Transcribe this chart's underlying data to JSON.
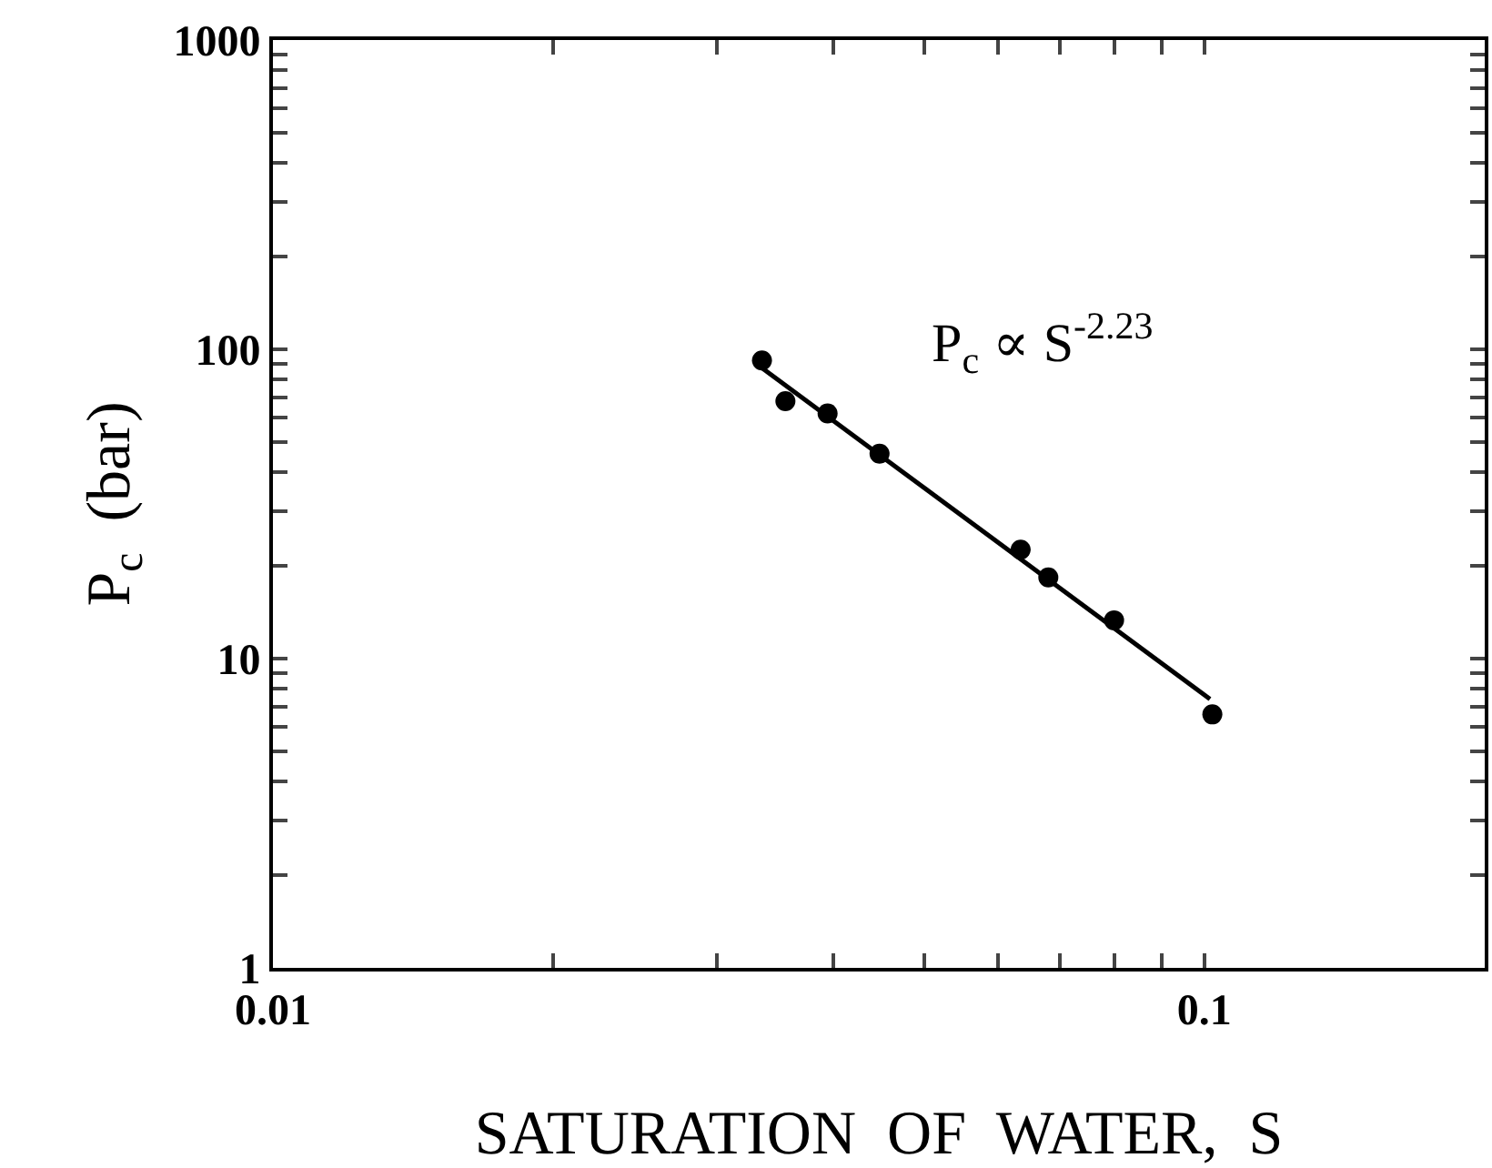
{
  "chart_data": {
    "type": "scatter",
    "xlabel": "SATURATION  OF  WATER,  S",
    "ylabel": "P$_{c}$  (bar)",
    "log": "xy",
    "grid": false,
    "legend": false,
    "marker": "circle",
    "xlim": [
      0.01,
      0.2
    ],
    "ylim": [
      1,
      1000
    ],
    "xticks": [
      {
        "value": 0.01,
        "label": "0.01"
      },
      {
        "value": 0.02,
        "label": null
      },
      {
        "value": 0.03,
        "label": null
      },
      {
        "value": 0.04,
        "label": null
      },
      {
        "value": 0.05,
        "label": null
      },
      {
        "value": 0.06,
        "label": null
      },
      {
        "value": 0.07,
        "label": null
      },
      {
        "value": 0.08,
        "label": null
      },
      {
        "value": 0.09,
        "label": null
      },
      {
        "value": 0.1,
        "label": "0.1"
      }
    ],
    "yticks": [
      1,
      {
        "value": 2,
        "label": null
      },
      {
        "value": 3,
        "label": null
      },
      {
        "value": 4,
        "label": null
      },
      {
        "value": 5,
        "label": null
      },
      {
        "value": 6,
        "label": null
      },
      {
        "value": 7,
        "label": null
      },
      {
        "value": 8,
        "label": null
      },
      {
        "value": 9,
        "label": null
      },
      10,
      {
        "value": 20,
        "label": null
      },
      {
        "value": 30,
        "label": null
      },
      {
        "value": 40,
        "label": null
      },
      {
        "value": 50,
        "label": null
      },
      {
        "value": 60,
        "label": null
      },
      {
        "value": 70,
        "label": null
      },
      {
        "value": 80,
        "label": null
      },
      {
        "value": 90,
        "label": null
      },
      100,
      {
        "value": 200,
        "label": null
      },
      {
        "value": 300,
        "label": null
      },
      {
        "value": 400,
        "label": null
      },
      {
        "value": 500,
        "label": null
      },
      {
        "value": 600,
        "label": null
      },
      {
        "value": 700,
        "label": null
      },
      {
        "value": 800,
        "label": null
      },
      {
        "value": 900,
        "label": null
      },
      1000
    ],
    "annotations": [
      "P$_{c}$ ∝ S$^{-2.23}$"
    ],
    "series": [
      {
        "color": "#000000",
        "x": [
          0.0335,
          0.0355,
          0.0394,
          0.0448,
          0.0635,
          0.068,
          0.08,
          0.102
        ],
        "values": [
          92,
          68,
          62,
          46,
          22.5,
          18.3,
          13.3,
          6.6
        ]
      },
      {
        "type": "line",
        "color": "#000000",
        "marker": "none",
        "x": [
          0.0335,
          0.1014
        ],
        "values": [
          87,
          7.4
        ]
      }
    ]
  }
}
